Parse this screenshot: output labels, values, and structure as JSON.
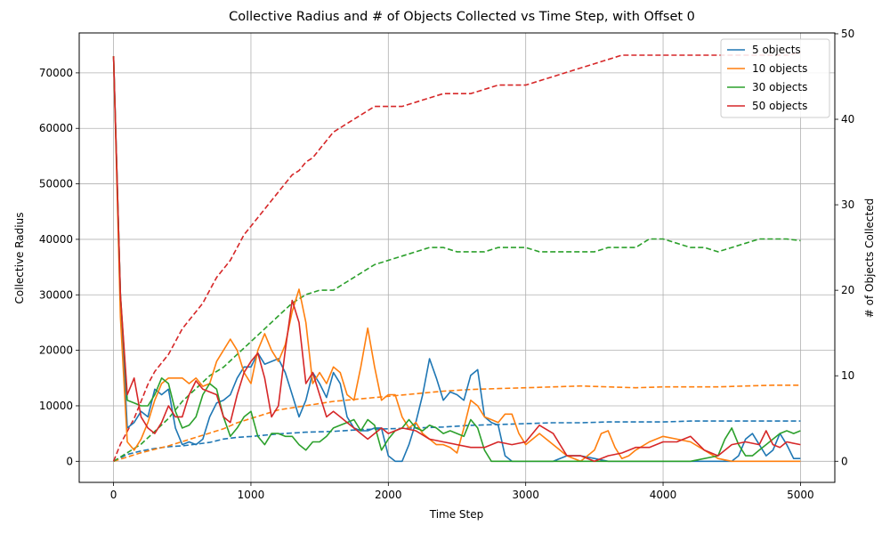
{
  "chart_data": {
    "type": "line",
    "title": "Collective Radius and # of Objects Collected vs Time Step, with Offset 0",
    "xlabel": "Time Step",
    "ylabel": "Collective Radius",
    "ylabel_right": "# of Objects Collected",
    "xlim": [
      -250,
      5250
    ],
    "ylim": [
      -3800,
      77200
    ],
    "ylim_right": [
      -2.47,
      50.1
    ],
    "xticks": [
      0,
      1000,
      2000,
      3000,
      4000,
      5000
    ],
    "yticks": [
      0,
      10000,
      20000,
      30000,
      40000,
      50000,
      60000,
      70000
    ],
    "yticks_right": [
      0,
      10,
      20,
      30,
      40,
      50
    ],
    "grid": true,
    "legend_position": "top-right",
    "legend_note": "solid = Collective Radius (left axis); dashed = # of Objects Collected (right axis)",
    "series": [
      {
        "name": "5 objects",
        "color": "#1f77b4",
        "radius": {
          "x": [
            0,
            50,
            100,
            150,
            200,
            250,
            300,
            350,
            400,
            450,
            500,
            550,
            600,
            650,
            700,
            750,
            800,
            850,
            900,
            950,
            1000,
            1050,
            1100,
            1150,
            1200,
            1250,
            1300,
            1350,
            1400,
            1450,
            1500,
            1550,
            1600,
            1650,
            1700,
            1750,
            1800,
            1850,
            1900,
            1950,
            2000,
            2050,
            2100,
            2150,
            2200,
            2250,
            2300,
            2350,
            2400,
            2450,
            2500,
            2550,
            2600,
            2650,
            2700,
            2750,
            2800,
            2850,
            2900,
            2950,
            3000,
            3100,
            3200,
            3300,
            3400,
            3500,
            3600,
            3700,
            3800,
            3900,
            4000,
            4100,
            4200,
            4300,
            4400,
            4500,
            4550,
            4600,
            4650,
            4700,
            4750,
            4800,
            4850,
            4900,
            4950,
            5000
          ],
          "y": [
            73000,
            30000,
            6000,
            7000,
            9000,
            8000,
            13000,
            12000,
            13000,
            6000,
            3000,
            3500,
            3000,
            4000,
            8000,
            10500,
            11000,
            12000,
            15000,
            17000,
            17000,
            19500,
            17500,
            18000,
            18500,
            16000,
            12000,
            8000,
            11000,
            16000,
            14000,
            11500,
            16000,
            14000,
            8000,
            6000,
            5500,
            5500,
            6000,
            6000,
            1000,
            0,
            0,
            3000,
            7000,
            12000,
            18500,
            15000,
            11000,
            12500,
            12000,
            11000,
            15500,
            16500,
            8000,
            7000,
            6500,
            1000,
            0,
            0,
            0,
            0,
            0,
            1000,
            1000,
            500,
            0,
            0,
            0,
            0,
            0,
            0,
            0,
            0,
            0,
            0,
            1000,
            4000,
            5000,
            3000,
            1000,
            2000,
            5000,
            3000,
            500,
            500
          ]
        },
        "objects": {
          "x": [
            0,
            100,
            200,
            300,
            400,
            500,
            600,
            700,
            800,
            900,
            1000,
            1200,
            1400,
            1600,
            1800,
            2000,
            2200,
            2400,
            2600,
            2800,
            3000,
            3200,
            3400,
            3600,
            3800,
            4000,
            4200,
            4400,
            4600,
            4800,
            5000
          ],
          "y": [
            0,
            0.8,
            1.2,
            1.5,
            1.7,
            1.8,
            2.0,
            2.2,
            2.6,
            2.8,
            2.9,
            3.2,
            3.4,
            3.5,
            3.7,
            3.8,
            3.9,
            4.0,
            4.2,
            4.3,
            4.4,
            4.5,
            4.5,
            4.6,
            4.6,
            4.6,
            4.7,
            4.7,
            4.7,
            4.7,
            4.7
          ]
        }
      },
      {
        "name": "10 objects",
        "color": "#ff7f0e",
        "radius": {
          "x": [
            0,
            50,
            100,
            150,
            200,
            250,
            300,
            350,
            400,
            450,
            500,
            550,
            600,
            650,
            700,
            750,
            800,
            850,
            900,
            950,
            1000,
            1050,
            1100,
            1150,
            1200,
            1250,
            1300,
            1350,
            1400,
            1450,
            1500,
            1550,
            1600,
            1650,
            1700,
            1750,
            1800,
            1850,
            1900,
            1950,
            2000,
            2050,
            2100,
            2150,
            2200,
            2250,
            2300,
            2350,
            2400,
            2450,
            2500,
            2550,
            2600,
            2650,
            2700,
            2750,
            2800,
            2850,
            2900,
            2950,
            3000,
            3100,
            3200,
            3300,
            3400,
            3500,
            3550,
            3600,
            3650,
            3700,
            3750,
            3800,
            3900,
            4000,
            4100,
            4200,
            4300,
            4400,
            4500,
            4600,
            4700,
            4800,
            4900,
            5000
          ],
          "y": [
            73000,
            26000,
            3500,
            2000,
            4000,
            7000,
            11000,
            14000,
            15000,
            15000,
            15000,
            14000,
            15000,
            13500,
            14000,
            18000,
            20000,
            22000,
            20000,
            16000,
            14000,
            20000,
            23000,
            20000,
            18000,
            21000,
            27000,
            31000,
            25000,
            14000,
            16000,
            14000,
            17000,
            16000,
            12000,
            11000,
            17000,
            24000,
            17000,
            11000,
            12000,
            12000,
            8000,
            6000,
            7000,
            5000,
            4000,
            3000,
            3000,
            2500,
            1500,
            6000,
            11000,
            10000,
            8000,
            7500,
            7000,
            8500,
            8500,
            5000,
            3000,
            5000,
            3000,
            1000,
            0,
            2000,
            5000,
            5500,
            2500,
            500,
            1000,
            2000,
            3500,
            4500,
            4000,
            3500,
            2000,
            500,
            0,
            0,
            0,
            0,
            0,
            0
          ]
        },
        "objects": {
          "x": [
            0,
            100,
            200,
            300,
            400,
            500,
            600,
            700,
            800,
            900,
            1000,
            1200,
            1400,
            1600,
            1800,
            2000,
            2200,
            2400,
            2600,
            2800,
            3000,
            3200,
            3400,
            3600,
            3800,
            4000,
            4200,
            4400,
            4600,
            4800,
            5000
          ],
          "y": [
            0,
            0.5,
            1.0,
            1.4,
            1.8,
            2.3,
            2.8,
            3.3,
            3.8,
            4.5,
            5.0,
            6.0,
            6.5,
            7.0,
            7.3,
            7.6,
            7.9,
            8.2,
            8.4,
            8.5,
            8.6,
            8.7,
            8.8,
            8.7,
            8.6,
            8.7,
            8.7,
            8.7,
            8.8,
            8.9,
            8.9
          ]
        }
      },
      {
        "name": "30 objects",
        "color": "#2ca02c",
        "radius": {
          "x": [
            0,
            50,
            100,
            150,
            200,
            250,
            300,
            350,
            400,
            450,
            500,
            550,
            600,
            650,
            700,
            750,
            800,
            850,
            900,
            950,
            1000,
            1050,
            1100,
            1150,
            1200,
            1250,
            1300,
            1350,
            1400,
            1450,
            1500,
            1550,
            1600,
            1650,
            1700,
            1750,
            1800,
            1850,
            1900,
            1950,
            2000,
            2050,
            2100,
            2150,
            2200,
            2250,
            2300,
            2350,
            2400,
            2450,
            2500,
            2550,
            2600,
            2650,
            2700,
            2750,
            2800,
            2900,
            3000,
            3200,
            3400,
            3600,
            3800,
            4000,
            4200,
            4400,
            4450,
            4500,
            4550,
            4600,
            4650,
            4700,
            4750,
            4800,
            4850,
            4900,
            4950,
            5000
          ],
          "y": [
            73000,
            30000,
            11000,
            10500,
            10000,
            10000,
            12000,
            15000,
            14000,
            9000,
            6000,
            6500,
            8000,
            12000,
            14000,
            13000,
            8000,
            4500,
            6000,
            8000,
            9000,
            4500,
            3000,
            5000,
            5000,
            4500,
            4500,
            3000,
            2000,
            3500,
            3500,
            4500,
            6000,
            6500,
            7000,
            7500,
            5500,
            7500,
            6500,
            2000,
            4000,
            5500,
            6000,
            7500,
            6000,
            5500,
            6500,
            6000,
            5000,
            5500,
            5000,
            4500,
            7500,
            6000,
            2000,
            0,
            0,
            0,
            0,
            0,
            0,
            0,
            0,
            0,
            0,
            1000,
            4000,
            6000,
            3000,
            1000,
            1000,
            2000,
            3000,
            4000,
            5000,
            5500,
            5000,
            5500
          ]
        },
        "objects": {
          "x": [
            0,
            100,
            200,
            300,
            400,
            500,
            600,
            700,
            800,
            900,
            1000,
            1100,
            1200,
            1300,
            1400,
            1500,
            1600,
            1700,
            1800,
            1900,
            2000,
            2100,
            2200,
            2300,
            2400,
            2500,
            2600,
            2700,
            2800,
            2900,
            3000,
            3100,
            3200,
            3300,
            3400,
            3500,
            3600,
            3700,
            3800,
            3900,
            4000,
            4100,
            4200,
            4300,
            4400,
            4500,
            4600,
            4700,
            4800,
            4900,
            5000
          ],
          "y": [
            0,
            1.0,
            2.0,
            3.5,
            5.0,
            7.0,
            8.5,
            10.0,
            11.0,
            12.5,
            14.0,
            15.5,
            17.0,
            18.5,
            19.5,
            20.0,
            20.0,
            21.0,
            22.0,
            23.0,
            23.5,
            24.0,
            24.5,
            25.0,
            25.0,
            24.5,
            24.5,
            24.5,
            25.0,
            25.0,
            25.0,
            24.5,
            24.5,
            24.5,
            24.5,
            24.5,
            25.0,
            25.0,
            25.0,
            26.0,
            26.0,
            25.5,
            25.0,
            25.0,
            24.5,
            25.0,
            25.5,
            26.0,
            26.0,
            26.0,
            25.8
          ]
        }
      },
      {
        "name": "50 objects",
        "color": "#d62728",
        "radius": {
          "x": [
            0,
            50,
            100,
            150,
            200,
            250,
            300,
            350,
            400,
            450,
            500,
            550,
            600,
            650,
            700,
            750,
            800,
            850,
            900,
            950,
            1000,
            1050,
            1100,
            1150,
            1200,
            1250,
            1300,
            1350,
            1400,
            1450,
            1500,
            1550,
            1600,
            1650,
            1700,
            1750,
            1800,
            1850,
            1900,
            1950,
            2000,
            2100,
            2200,
            2300,
            2400,
            2500,
            2600,
            2700,
            2800,
            2900,
            3000,
            3100,
            3200,
            3300,
            3400,
            3500,
            3600,
            3700,
            3800,
            3900,
            4000,
            4100,
            4200,
            4300,
            4400,
            4500,
            4600,
            4700,
            4750,
            4800,
            4850,
            4900,
            5000
          ],
          "y": [
            73000,
            30000,
            12000,
            15000,
            8000,
            6000,
            5000,
            7000,
            10000,
            8000,
            8000,
            12000,
            14500,
            13000,
            12500,
            12000,
            8000,
            7000,
            12000,
            16000,
            18000,
            19500,
            15000,
            8000,
            10000,
            20000,
            29000,
            25000,
            14000,
            16000,
            12000,
            8000,
            9000,
            8000,
            7000,
            6000,
            5000,
            4000,
            5000,
            6000,
            5000,
            6000,
            5500,
            4000,
            3500,
            3000,
            2500,
            2500,
            3500,
            3000,
            3500,
            6500,
            5000,
            1000,
            1000,
            0,
            1000,
            1500,
            2500,
            2500,
            3500,
            3500,
            4500,
            2000,
            1000,
            3000,
            3500,
            3000,
            5500,
            3000,
            2500,
            3500,
            3000
          ]
        },
        "objects": {
          "x": [
            0,
            50,
            100,
            150,
            200,
            250,
            300,
            350,
            400,
            450,
            500,
            550,
            600,
            650,
            700,
            750,
            800,
            850,
            900,
            950,
            1000,
            1050,
            1100,
            1150,
            1200,
            1250,
            1300,
            1350,
            1400,
            1450,
            1500,
            1550,
            1600,
            1650,
            1700,
            1750,
            1800,
            1850,
            1900,
            1950,
            2000,
            2100,
            2200,
            2300,
            2400,
            2500,
            2600,
            2700,
            2800,
            2900,
            3000,
            3100,
            3200,
            3300,
            3400,
            3500,
            3600,
            3700,
            3800,
            3900,
            4000,
            4100,
            4200,
            4300,
            4400,
            4500,
            4600,
            4700,
            4800,
            4900,
            5000
          ],
          "y": [
            0,
            2.0,
            3.5,
            5.0,
            7.0,
            9.0,
            10.5,
            11.5,
            12.5,
            14.0,
            15.5,
            16.5,
            17.5,
            18.5,
            20.0,
            21.5,
            22.5,
            23.5,
            25.0,
            26.5,
            27.5,
            28.5,
            29.5,
            30.5,
            31.5,
            32.5,
            33.5,
            34.0,
            35.0,
            35.5,
            36.5,
            37.5,
            38.5,
            39.0,
            39.5,
            40.0,
            40.5,
            41.0,
            41.5,
            41.5,
            41.5,
            41.5,
            42.0,
            42.5,
            43.0,
            43.0,
            43.0,
            43.5,
            44.0,
            44.0,
            44.0,
            44.5,
            45.0,
            45.5,
            46.0,
            46.5,
            47.0,
            47.5,
            47.5,
            47.5,
            47.5,
            47.5,
            47.5,
            47.5,
            47.5,
            47.5,
            47.5,
            47.5,
            47.5,
            47.5,
            47.8
          ]
        }
      }
    ]
  }
}
